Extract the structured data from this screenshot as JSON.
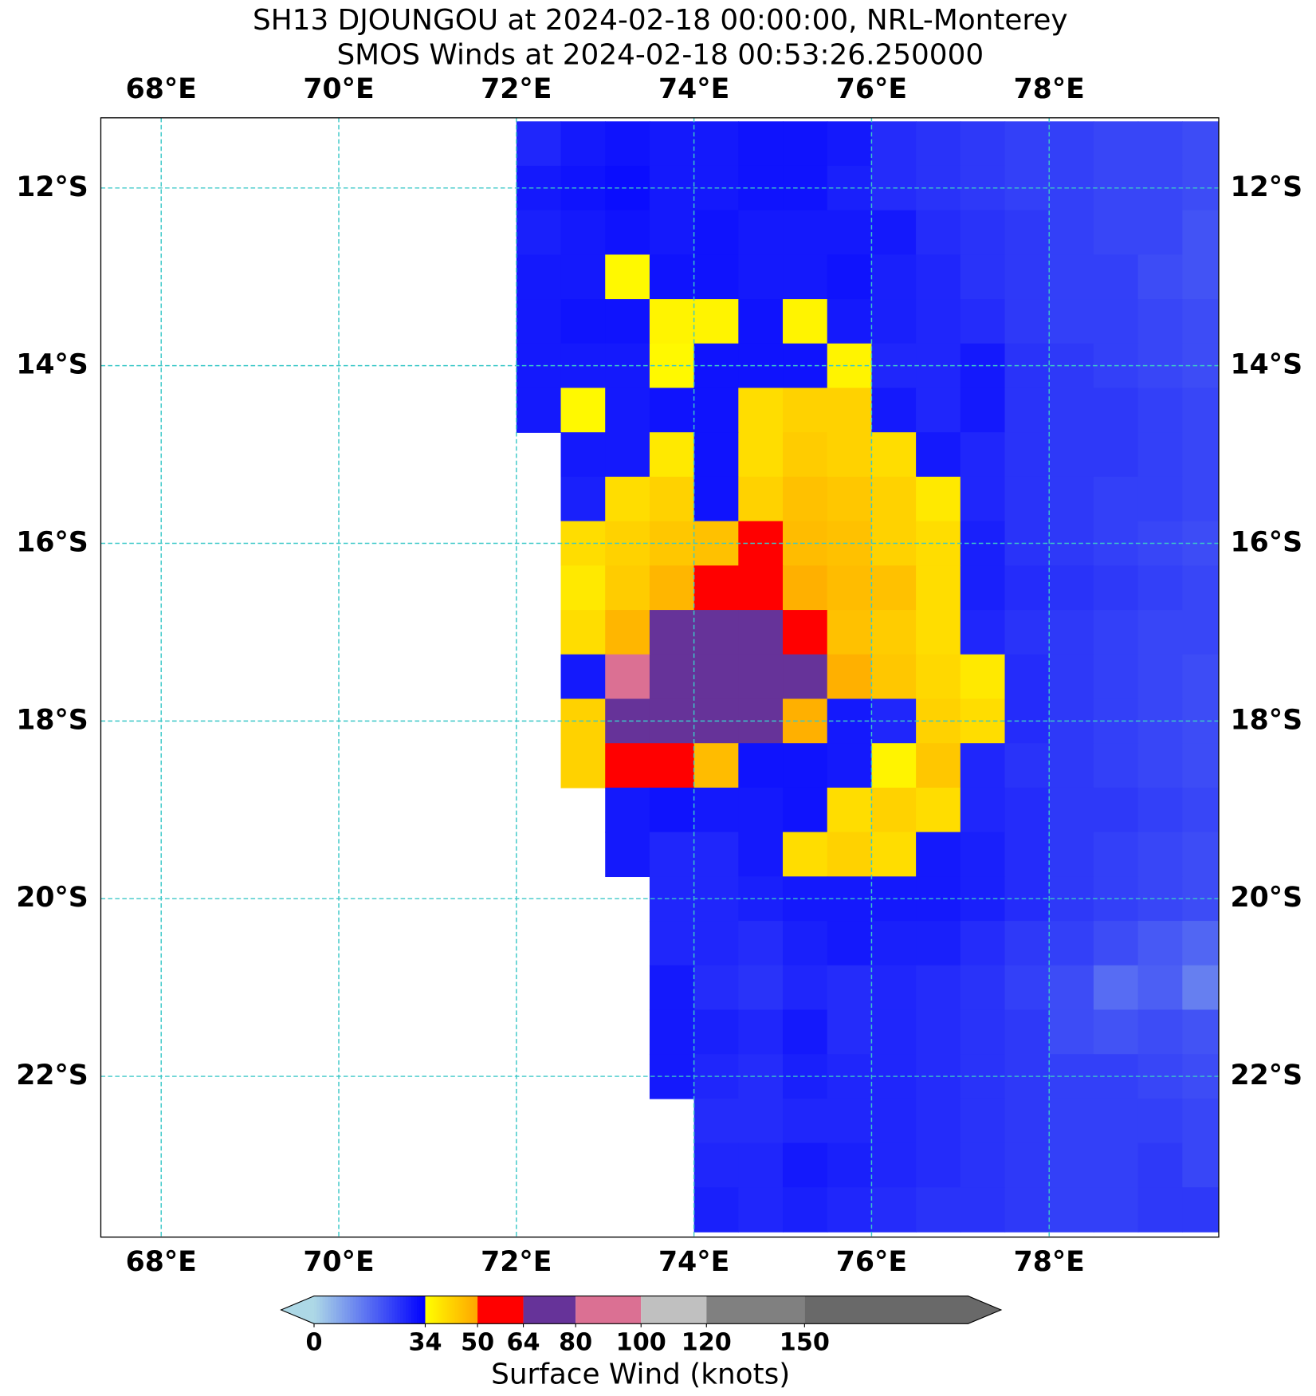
{
  "chart_data": {
    "type": "heatmap",
    "title": "SH13 DJOUNGOU at 2024-02-18 00:00:00, NRL-Monterey",
    "subtitle": "SMOS Winds at 2024-02-18 00:53:26.250000",
    "xlim": [
      67.32,
      79.91
    ],
    "ylim": [
      -23.81,
      -11.21
    ],
    "xticks": [
      {
        "value": 68,
        "label": "68°E"
      },
      {
        "value": 70,
        "label": "70°E"
      },
      {
        "value": 72,
        "label": "72°E"
      },
      {
        "value": 74,
        "label": "74°E"
      },
      {
        "value": 76,
        "label": "76°E"
      },
      {
        "value": 78,
        "label": "78°E"
      }
    ],
    "yticks": [
      {
        "value": -12,
        "label": "12°S"
      },
      {
        "value": -14,
        "label": "14°S"
      },
      {
        "value": -16,
        "label": "16°S"
      },
      {
        "value": -18,
        "label": "18°S"
      },
      {
        "value": -20,
        "label": "20°S"
      },
      {
        "value": -22,
        "label": "22°S"
      }
    ],
    "grid": true,
    "grid_color": "#3cc8c8",
    "x": [
      72.25,
      72.75,
      73.25,
      73.75,
      74.25,
      74.75,
      75.25,
      75.75,
      76.25,
      76.75,
      77.25,
      77.75,
      78.25,
      78.75,
      79.25,
      79.75
    ],
    "y": [
      -11.5,
      -12,
      -12.5,
      -13,
      -13.5,
      -14,
      -14.5,
      -15,
      -15.5,
      -16,
      -16.5,
      -17,
      -17.5,
      -18,
      -18.5,
      -19,
      -19.5,
      -20,
      -20.5,
      -21,
      -21.5,
      -22,
      -22.5,
      -23,
      -23.5
    ],
    "values": [
      [
        28,
        30,
        31,
        30,
        30,
        31,
        31,
        30,
        27,
        26,
        25,
        24,
        24,
        23,
        23,
        22
      ],
      [
        30,
        31,
        32,
        30,
        30,
        31,
        31,
        29,
        27,
        26,
        25,
        24,
        24,
        23,
        23,
        22
      ],
      [
        29,
        30,
        31,
        30,
        31,
        30,
        30,
        30,
        30,
        27,
        26,
        25,
        24,
        23,
        23,
        21
      ],
      [
        30,
        30,
        35,
        31,
        31,
        30,
        30,
        31,
        29,
        28,
        26,
        25,
        24,
        24,
        22,
        21
      ],
      [
        30,
        31,
        31,
        36,
        36,
        31,
        36,
        30,
        29,
        28,
        27,
        25,
        24,
        24,
        23,
        22
      ],
      [
        30,
        30,
        30,
        35,
        31,
        31,
        31,
        36,
        28,
        28,
        30,
        26,
        25,
        24,
        23,
        22
      ],
      [
        30,
        35,
        30,
        31,
        31,
        40,
        42,
        42,
        30,
        28,
        30,
        26,
        25,
        25,
        24,
        23
      ],
      [
        null,
        30,
        30,
        38,
        31,
        40,
        43,
        42,
        40,
        30,
        28,
        26,
        25,
        25,
        24,
        23
      ],
      [
        null,
        29,
        40,
        42,
        31,
        42,
        45,
        44,
        42,
        38,
        28,
        26,
        25,
        24,
        24,
        23
      ],
      [
        null,
        40,
        42,
        44,
        45,
        55,
        46,
        45,
        42,
        40,
        29,
        26,
        25,
        24,
        23,
        22
      ],
      [
        null,
        38,
        43,
        47,
        60,
        58,
        48,
        46,
        45,
        40,
        29,
        27,
        26,
        25,
        24,
        23
      ],
      [
        null,
        40,
        47,
        65,
        75,
        72,
        62,
        45,
        43,
        40,
        28,
        26,
        25,
        24,
        23,
        23
      ],
      [
        null,
        30,
        82,
        78,
        75,
        74,
        64,
        48,
        44,
        41,
        38,
        27,
        25,
        24,
        23,
        22
      ],
      [
        null,
        42,
        66,
        74,
        72,
        64,
        48,
        30,
        28,
        42,
        40,
        27,
        25,
        24,
        23,
        22
      ],
      [
        null,
        42,
        62,
        58,
        46,
        31,
        31,
        30,
        36,
        44,
        28,
        26,
        25,
        24,
        23,
        22
      ],
      [
        null,
        null,
        30,
        31,
        30,
        30,
        31,
        40,
        42,
        40,
        28,
        27,
        25,
        25,
        24,
        23
      ],
      [
        null,
        null,
        30,
        28,
        28,
        30,
        40,
        42,
        40,
        30,
        29,
        27,
        25,
        24,
        23,
        22
      ],
      [
        null,
        null,
        null,
        28,
        28,
        29,
        30,
        30,
        30,
        30,
        29,
        27,
        25,
        24,
        23,
        22
      ],
      [
        null,
        null,
        null,
        28,
        28,
        27,
        29,
        30,
        29,
        29,
        27,
        25,
        24,
        22,
        20,
        18
      ],
      [
        null,
        null,
        null,
        30,
        27,
        26,
        28,
        27,
        28,
        27,
        26,
        24,
        22,
        17,
        19,
        14
      ],
      [
        null,
        null,
        null,
        30,
        29,
        28,
        30,
        27,
        28,
        27,
        26,
        25,
        22,
        21,
        22,
        21
      ],
      [
        null,
        null,
        null,
        30,
        28,
        27,
        29,
        28,
        28,
        27,
        26,
        25,
        24,
        24,
        23,
        22
      ],
      [
        null,
        null,
        null,
        null,
        27,
        27,
        28,
        28,
        28,
        27,
        26,
        25,
        24,
        24,
        24,
        23
      ],
      [
        null,
        null,
        null,
        null,
        28,
        28,
        30,
        29,
        28,
        27,
        26,
        25,
        24,
        24,
        25,
        23
      ],
      [
        null,
        null,
        null,
        null,
        29,
        28,
        29,
        28,
        27,
        26,
        26,
        25,
        24,
        24,
        25,
        25
      ]
    ],
    "colorbar": {
      "label": "Surface Wind (knots)",
      "lim": [
        0,
        200
      ],
      "ticks": [
        0,
        34,
        50,
        64,
        80,
        100,
        120,
        150
      ],
      "under_color": "#add8e6",
      "bin_colors": [
        [
          "#add8e6",
          "#0000ff"
        ],
        [
          "#ffff00",
          "#ffa500"
        ],
        "#ff0000",
        "#663399",
        "#db7093",
        "#c0c0c0",
        "#808080",
        "#696969"
      ]
    }
  }
}
